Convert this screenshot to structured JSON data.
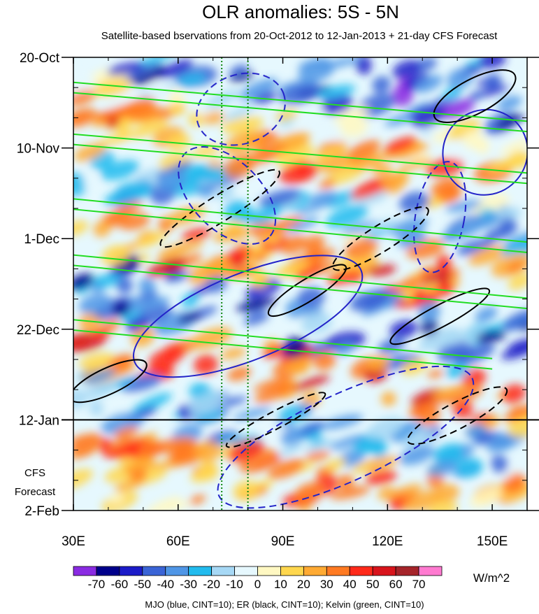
{
  "chart_data": {
    "type": "heatmap",
    "title": "OLR anomalies: 5S - 5N",
    "subtitle": "Satellite-based bservations from 20-Oct-2012 to 12-Jan-2013 + 21-day CFS Forecast",
    "x_axis": {
      "range": [
        30,
        160
      ],
      "tick_values": [
        30,
        60,
        90,
        120,
        150
      ],
      "tick_labels": [
        "30E",
        "60E",
        "90E",
        "120E",
        "150E"
      ],
      "minor_tick_values": [
        40,
        50,
        70,
        80,
        100,
        110,
        130,
        140,
        160
      ]
    },
    "y_axis": {
      "range_days": [
        0,
        105
      ],
      "tick_days": [
        0,
        21,
        42,
        63,
        84,
        105
      ],
      "tick_labels": [
        "20-Oct",
        "10-Nov",
        "1-Dec",
        "22-Dec",
        "12-Jan",
        "2-Feb"
      ],
      "forecast_label_lines": [
        "CFS",
        "Forecast"
      ]
    },
    "forecast_start_day": 84,
    "vertical_reference_lines_lon": [
      72.5,
      80
    ],
    "colorbar": {
      "unit": "W/m^2",
      "levels": [
        -70,
        -60,
        -50,
        -40,
        -30,
        -20,
        -10,
        0,
        10,
        20,
        30,
        40,
        50,
        60,
        70
      ],
      "level_labels": [
        "-70",
        "-60",
        "-50",
        "-40",
        "-30",
        "-20",
        "-10",
        "0",
        "10",
        "20",
        "30",
        "40",
        "50",
        "60",
        "70"
      ],
      "colors": [
        "#8a2be2",
        "#00008b",
        "#1c1cc8",
        "#3a64d6",
        "#4f96e6",
        "#22bbee",
        "#a6d8f5",
        "#e6f8fe",
        "#fff8c2",
        "#ffd74e",
        "#ffaa33",
        "#ff7a22",
        "#ff2a1a",
        "#d8141c",
        "#a5242a",
        "#ff7ad0"
      ]
    },
    "contour_legend": "MJO (blue, CINT=10); ER (black, CINT=10); Kelvin (green, CINT=10)",
    "contours": {
      "mjo": [
        {
          "lon": 78,
          "day": 12,
          "rlon": 13,
          "rday": 8,
          "angle": -20,
          "sign": "neg"
        },
        {
          "lon": 80,
          "day": 60,
          "rlon": 35,
          "rday": 10,
          "angle": -22,
          "sign": "pos"
        },
        {
          "lon": 108,
          "day": 88,
          "rlon": 40,
          "rday": 10,
          "angle": -25,
          "sign": "neg"
        },
        {
          "lon": 74,
          "day": 32,
          "rlon": 17,
          "rday": 8,
          "angle": 45,
          "sign": "neg"
        },
        {
          "lon": 148,
          "day": 22,
          "rlon": 12,
          "rday": 10,
          "angle": 40,
          "sign": "pos"
        },
        {
          "lon": 135,
          "day": 37,
          "rlon": 7,
          "rday": 13,
          "angle": 10,
          "sign": "neg"
        }
      ],
      "er": [
        {
          "lon": 72,
          "day": 35,
          "rlon": 20,
          "rday": 3,
          "angle": -32,
          "sign": "neg"
        },
        {
          "lon": 97,
          "day": 54,
          "rlon": 13,
          "rday": 2.5,
          "angle": -32,
          "sign": "pos"
        },
        {
          "lon": 145,
          "day": 9,
          "rlon": 13,
          "rday": 4,
          "angle": -28,
          "sign": "pos"
        },
        {
          "lon": 118,
          "day": 42,
          "rlon": 16,
          "rday": 3,
          "angle": -32,
          "sign": "neg"
        },
        {
          "lon": 40,
          "day": 75,
          "rlon": 12,
          "rday": 3,
          "angle": -25,
          "sign": "pos"
        },
        {
          "lon": 140,
          "day": 83,
          "rlon": 16,
          "rday": 3,
          "angle": -28,
          "sign": "neg"
        },
        {
          "lon": 135,
          "day": 60,
          "rlon": 16,
          "rday": 2.5,
          "angle": -28,
          "sign": "pos"
        },
        {
          "lon": 88,
          "day": 84,
          "rlon": 16,
          "rday": 2,
          "angle": -28,
          "sign": "neg"
        }
      ],
      "kelvin_lines": [
        {
          "lon0": 30,
          "day0": 7,
          "lon1": 160,
          "day1": 16
        },
        {
          "lon0": 30,
          "day0": 19,
          "lon1": 160,
          "day1": 28
        },
        {
          "lon0": 30,
          "day0": 34,
          "lon1": 160,
          "day1": 44
        },
        {
          "lon0": 30,
          "day0": 47,
          "lon1": 160,
          "day1": 57
        },
        {
          "lon0": 30,
          "day0": 62,
          "lon1": 150,
          "day1": 71
        }
      ]
    }
  }
}
